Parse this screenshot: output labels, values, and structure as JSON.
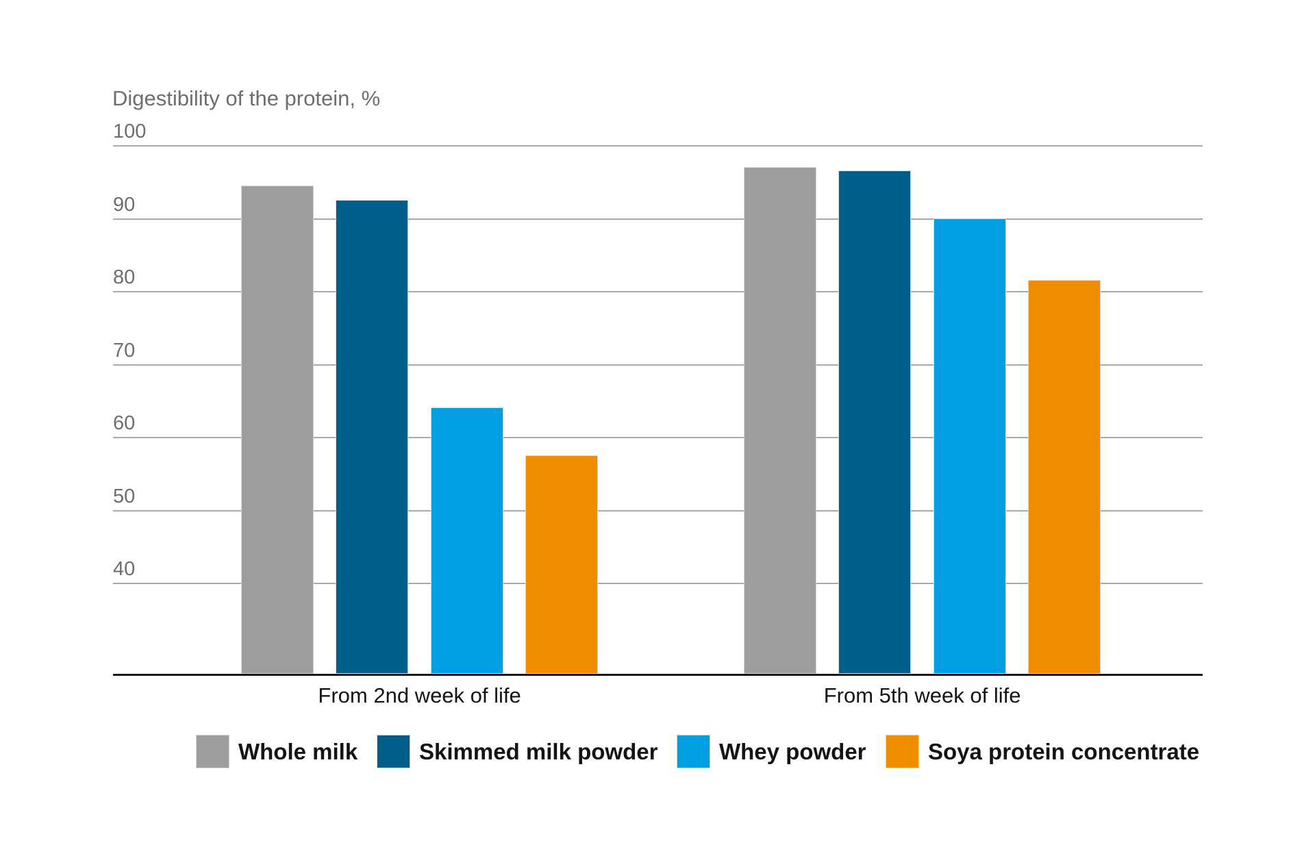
{
  "page": {
    "background": "#FFFFFF"
  },
  "chart_data": {
    "type": "bar",
    "title": "Digestibility of the protein, %",
    "categories": [
      "From 2nd week of life",
      "From 5th week of life"
    ],
    "series": [
      {
        "name": "Whole milk",
        "color": "#9D9D9C",
        "values": [
          94.5,
          97
        ]
      },
      {
        "name": "Skimmed milk powder",
        "color": "#005E8B",
        "values": [
          92.5,
          96.5
        ]
      },
      {
        "name": "Whey powder",
        "color": "#009EE3",
        "values": [
          64,
          90
        ]
      },
      {
        "name": "Soya protein concentrate",
        "color": "#F08C00",
        "values": [
          57.5,
          81.5
        ]
      }
    ],
    "y_ticks": [
      100,
      90,
      80,
      70,
      60,
      50,
      40
    ],
    "ylim": [
      28,
      100
    ],
    "xlabel": "",
    "ylabel": "",
    "grid": true,
    "legend_position": "bottom",
    "gridline_color": "#A9A9A9",
    "axis_color": "#1A1A1A",
    "text_color": "#141414",
    "muted_text_color": "#6E6E6E"
  }
}
